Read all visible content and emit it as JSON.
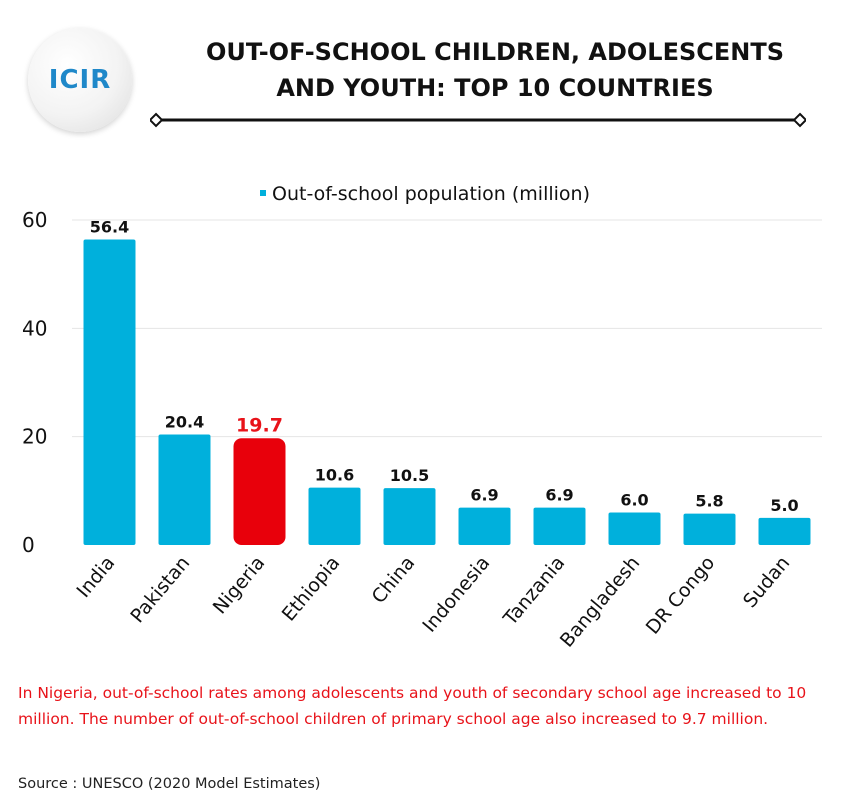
{
  "logo": {
    "text": "ICIR"
  },
  "title": {
    "line1": "OUT-OF-SCHOOL CHILDREN, ADOLESCENTS",
    "line2": "AND YOUTH: TOP 10 COUNTRIES"
  },
  "chart_data": {
    "type": "bar",
    "categories": [
      "India",
      "Pakistan",
      "Nigeria",
      "Ethiopia",
      "China",
      "Indonesia",
      "Tanzania",
      "Bangladesh",
      "DR Congo",
      "Sudan"
    ],
    "series": [
      {
        "name": "Out-of-school population (million)",
        "values": [
          56.4,
          20.4,
          19.7,
          10.6,
          10.5,
          6.9,
          6.9,
          6.0,
          5.8,
          5.0
        ]
      }
    ],
    "data_labels": [
      "56.4",
      "20.4",
      "19.7",
      "10.6",
      "10.5",
      "6.9",
      "6.9",
      "6.0",
      "5.8",
      "5.0"
    ],
    "highlight_category": "Nigeria",
    "ylim": [
      0,
      60
    ],
    "yticks": [
      0,
      20,
      40,
      60
    ],
    "grid": true,
    "legend_position": "top-center",
    "colors": {
      "bar": "#00b0dc",
      "highlight": "#e8000b",
      "highlight_label": "#e8131a",
      "grid": "#e4e4e4"
    }
  },
  "note": "In Nigeria, out-of-school rates among adolescents and youth of secondary school age increased to 10 million. The number of out-of-school children of primary school age also increased to 9.7 million.",
  "source": "Source : UNESCO (2020 Model Estimates)"
}
